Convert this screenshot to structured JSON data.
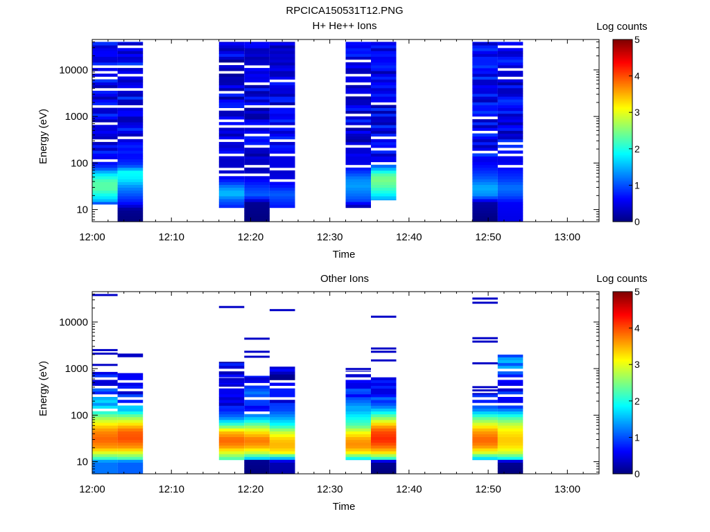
{
  "figure_title": "RPCICA150531T12.PNG",
  "colors": {
    "colormap": [
      "#00007f",
      "#0000ff",
      "#007fff",
      "#00ffff",
      "#7fff7f",
      "#ffff00",
      "#ff7f00",
      "#ff0000",
      "#7f0000"
    ]
  },
  "chart_data": [
    {
      "type": "heatmap",
      "title": "H+ He++ Ions",
      "xlabel": "Time",
      "ylabel": "Energy (eV)",
      "x_ticks": [
        "12:00",
        "12:10",
        "12:20",
        "12:30",
        "12:40",
        "12:50",
        "13:00"
      ],
      "x_tick_minutes": [
        0,
        10,
        20,
        30,
        40,
        50,
        60
      ],
      "xlim_minutes": [
        0,
        64
      ],
      "y_scale": "log",
      "ylim": [
        5.5,
        45000
      ],
      "y_ticks": [
        "10",
        "100",
        "1000",
        "10000"
      ],
      "y_tick_values": [
        10,
        100,
        1000,
        10000
      ],
      "colorbar": {
        "label": "Log counts",
        "min": 0,
        "max": 5,
        "ticks": [
          "0",
          "1",
          "2",
          "3",
          "4",
          "5"
        ]
      },
      "columns": [
        {
          "t_start": 0.0,
          "t_end": 3.2,
          "e_min": 13,
          "e_max": 40000,
          "low_profile": [
            [
              13,
              0.8
            ],
            [
              16,
              1.6
            ],
            [
              20,
              1.9
            ],
            [
              28,
              2.3
            ],
            [
              40,
              2.3
            ],
            [
              60,
              1.7
            ],
            [
              80,
              0.9
            ],
            [
              120,
              0.5
            ]
          ],
          "high_level": 0.55,
          "blank_energies": [
            110,
            290,
            700,
            1600,
            3600,
            7000,
            9400,
            12500
          ]
        },
        {
          "t_start": 3.2,
          "t_end": 6.4,
          "e_min": 5.5,
          "e_max": 40000,
          "low_profile": [
            [
              5.5,
              0.0
            ],
            [
              10,
              0.1
            ],
            [
              14,
              0.7
            ],
            [
              20,
              1.0
            ],
            [
              30,
              1.3
            ],
            [
              45,
              1.8
            ],
            [
              65,
              1.9
            ],
            [
              90,
              0.9
            ],
            [
              150,
              0.6
            ]
          ],
          "high_level": 0.6,
          "blank_energies": [
            330,
            1700,
            3800,
            7600,
            12500,
            30000
          ]
        },
        {
          "t_start": 16.0,
          "t_end": 19.2,
          "e_min": 11,
          "e_max": 40000,
          "low_profile": [
            [
              11,
              0.75
            ],
            [
              16,
              1.1
            ],
            [
              22,
              1.6
            ],
            [
              30,
              1.3
            ],
            [
              40,
              0.8
            ],
            [
              60,
              0.4
            ],
            [
              120,
              0.35
            ]
          ],
          "high_level": 0.45,
          "blank_energies": [
            60,
            75,
            160,
            300,
            580,
            780,
            1400,
            3200,
            9000,
            13500
          ]
        },
        {
          "t_start": 19.2,
          "t_end": 22.4,
          "e_min": 5.5,
          "e_max": 40000,
          "low_profile": [
            [
              5.5,
              0.0
            ],
            [
              14,
              0.1
            ],
            [
              20,
              1.1
            ],
            [
              30,
              0.9
            ],
            [
              45,
              0.6
            ],
            [
              70,
              0.3
            ],
            [
              120,
              0.35
            ]
          ],
          "high_level": 0.45,
          "blank_energies": [
            55,
            90,
            230,
            380,
            640,
            1550,
            4900,
            11500
          ]
        },
        {
          "t_start": 22.4,
          "t_end": 25.6,
          "e_min": 11,
          "e_max": 40000,
          "low_profile": [
            [
              11,
              0.7
            ],
            [
              16,
              0.9
            ],
            [
              22,
              1.1
            ],
            [
              32,
              0.7
            ],
            [
              45,
              0.5
            ],
            [
              80,
              0.35
            ]
          ],
          "high_level": 0.5,
          "blank_energies": [
            45,
            75,
            160,
            290,
            620,
            1600,
            5600
          ]
        },
        {
          "t_start": 32.0,
          "t_end": 35.2,
          "e_min": 11,
          "e_max": 40000,
          "low_profile": [
            [
              11,
              0.1
            ],
            [
              16,
              1.0
            ],
            [
              22,
              1.2
            ],
            [
              32,
              1.4
            ],
            [
              45,
              1.3
            ],
            [
              70,
              0.8
            ],
            [
              100,
              0.5
            ]
          ],
          "high_level": 0.5,
          "blank_energies": [
            85,
            230,
            640,
            1150,
            3100,
            5400,
            7800,
            16000
          ]
        },
        {
          "t_start": 35.2,
          "t_end": 38.4,
          "e_min": 16,
          "e_max": 40000,
          "low_profile": [
            [
              16,
              1.4
            ],
            [
              22,
              1.9
            ],
            [
              32,
              2.3
            ],
            [
              45,
              2.5
            ],
            [
              60,
              2.2
            ],
            [
              80,
              1.3
            ],
            [
              110,
              0.6
            ]
          ],
          "high_level": 0.55,
          "blank_energies": [
            100,
            210,
            350,
            2000
          ]
        },
        {
          "t_start": 48.0,
          "t_end": 51.2,
          "e_min": 5.5,
          "e_max": 40000,
          "low_profile": [
            [
              5.5,
              0.0
            ],
            [
              14,
              0.2
            ],
            [
              20,
              1.3
            ],
            [
              30,
              1.5
            ],
            [
              45,
              1.1
            ],
            [
              70,
              0.8
            ],
            [
              120,
              0.5
            ]
          ],
          "high_level": 0.6,
          "blank_energies": [
            180,
            440,
            1000
          ]
        },
        {
          "t_start": 51.2,
          "t_end": 54.4,
          "e_min": 5.5,
          "e_max": 40000,
          "low_profile": [
            [
              5.5,
              0.5
            ],
            [
              14,
              0.6
            ],
            [
              20,
              1.0
            ],
            [
              30,
              1.2
            ],
            [
              45,
              0.9
            ],
            [
              70,
              0.7
            ],
            [
              120,
              0.5
            ]
          ],
          "high_level": 0.55,
          "blank_energies": [
            85,
            150,
            210,
            270,
            6700,
            10500,
            30000
          ]
        }
      ]
    },
    {
      "type": "heatmap",
      "title": "Other Ions",
      "xlabel": "Time",
      "ylabel": "Energy (eV)",
      "x_ticks": [
        "12:00",
        "12:10",
        "12:20",
        "12:30",
        "12:40",
        "12:50",
        "13:00"
      ],
      "x_tick_minutes": [
        0,
        10,
        20,
        30,
        40,
        50,
        60
      ],
      "xlim_minutes": [
        0,
        64
      ],
      "y_scale": "log",
      "ylim": [
        5.5,
        45000
      ],
      "y_ticks": [
        "10",
        "100",
        "1000",
        "10000"
      ],
      "y_tick_values": [
        10,
        100,
        1000,
        10000
      ],
      "colorbar": {
        "label": "Log counts",
        "min": 0,
        "max": 5,
        "ticks": [
          "0",
          "1",
          "2",
          "3",
          "4",
          "5"
        ]
      },
      "columns": [
        {
          "t_start": 0.0,
          "t_end": 3.2,
          "e_min": 5.5,
          "e_max": 850,
          "low_profile": [
            [
              5.5,
              1.2
            ],
            [
              10,
              1.2
            ],
            [
              12,
              2.2
            ],
            [
              16,
              3.0
            ],
            [
              20,
              3.6
            ],
            [
              30,
              3.9
            ],
            [
              45,
              3.7
            ],
            [
              60,
              3.3
            ],
            [
              90,
              2.6
            ],
            [
              130,
              1.8
            ],
            [
              200,
              1.5
            ],
            [
              300,
              1.1
            ],
            [
              500,
              0.7
            ],
            [
              850,
              0.6
            ]
          ],
          "high_level": 0.4,
          "blank_energies": [
            140,
            260,
            420,
            620
          ],
          "lines": [
            2100,
            2500,
            1200,
            38000
          ]
        },
        {
          "t_start": 3.2,
          "t_end": 6.4,
          "e_min": 5.5,
          "e_max": 800,
          "low_profile": [
            [
              5.5,
              1.1
            ],
            [
              10,
              1.1
            ],
            [
              12,
              2.3
            ],
            [
              16,
              3.0
            ],
            [
              20,
              3.6
            ],
            [
              30,
              4.0
            ],
            [
              45,
              3.9
            ],
            [
              60,
              3.4
            ],
            [
              90,
              2.6
            ],
            [
              130,
              1.6
            ],
            [
              200,
              1.0
            ],
            [
              300,
              0.6
            ],
            [
              800,
              0.4
            ]
          ],
          "high_level": 0.4,
          "blank_energies": [
            170,
            230,
            350,
            520
          ],
          "lines": [
            1850,
            2000
          ]
        },
        {
          "t_start": 16.0,
          "t_end": 19.2,
          "e_min": 11,
          "e_max": 1400,
          "low_profile": [
            [
              11,
              2.1
            ],
            [
              16,
              3.0
            ],
            [
              22,
              3.7
            ],
            [
              30,
              3.9
            ],
            [
              45,
              3.4
            ],
            [
              60,
              2.3
            ],
            [
              90,
              1.2
            ],
            [
              150,
              0.6
            ],
            [
              400,
              0.5
            ],
            [
              1400,
              0.5
            ]
          ],
          "high_level": 0.4,
          "blank_energies": [
            420,
            650,
            1000
          ],
          "lines": [
            21000,
            430,
            600
          ]
        },
        {
          "t_start": 19.2,
          "t_end": 22.4,
          "e_min": 5.5,
          "e_max": 700,
          "low_profile": [
            [
              5.5,
              0.0
            ],
            [
              11,
              0.1
            ],
            [
              12,
              1.8
            ],
            [
              16,
              2.9
            ],
            [
              22,
              3.6
            ],
            [
              30,
              3.8
            ],
            [
              45,
              3.2
            ],
            [
              60,
              2.5
            ],
            [
              90,
              1.5
            ],
            [
              130,
              0.7
            ],
            [
              300,
              0.9
            ],
            [
              700,
              0.5
            ]
          ],
          "high_level": 0.4,
          "blank_energies": [
            110,
            230,
            480
          ],
          "lines": [
            4400,
            1800,
            2300
          ]
        },
        {
          "t_start": 22.4,
          "t_end": 25.6,
          "e_min": 5.5,
          "e_max": 1100,
          "low_profile": [
            [
              5.5,
              0.2
            ],
            [
              10,
              0.25
            ],
            [
              12,
              1.6
            ],
            [
              16,
              3.2
            ],
            [
              22,
              3.5
            ],
            [
              30,
              3.4
            ],
            [
              45,
              2.8
            ],
            [
              60,
              2.0
            ],
            [
              90,
              1.4
            ],
            [
              150,
              0.8
            ],
            [
              400,
              0.4
            ],
            [
              1100,
              0.4
            ]
          ],
          "high_level": 0.4,
          "blank_energies": [
            230,
            380,
            550
          ],
          "lines": [
            18000
          ]
        },
        {
          "t_start": 32.0,
          "t_end": 35.2,
          "e_min": 11,
          "e_max": 900,
          "low_profile": [
            [
              11,
              1.6
            ],
            [
              16,
              3.2
            ],
            [
              22,
              3.7
            ],
            [
              30,
              3.6
            ],
            [
              45,
              3.0
            ],
            [
              60,
              2.3
            ],
            [
              90,
              1.9
            ],
            [
              150,
              1.3
            ],
            [
              300,
              0.8
            ],
            [
              500,
              0.5
            ],
            [
              900,
              0.45
            ]
          ],
          "high_level": 0.4,
          "blank_energies": [
            600,
            850
          ],
          "lines": [
            980
          ]
        },
        {
          "t_start": 35.2,
          "t_end": 38.4,
          "e_min": 5.5,
          "e_max": 650,
          "low_profile": [
            [
              5.5,
              0.0
            ],
            [
              10,
              0.1
            ],
            [
              12,
              2.2
            ],
            [
              16,
              3.3
            ],
            [
              22,
              3.9
            ],
            [
              30,
              4.2
            ],
            [
              45,
              4.0
            ],
            [
              60,
              3.5
            ],
            [
              90,
              2.5
            ],
            [
              130,
              1.6
            ],
            [
              200,
              1.1
            ],
            [
              300,
              0.7
            ],
            [
              650,
              0.6
            ]
          ],
          "high_level": 0.4,
          "blank_energies": [],
          "lines": [
            13000,
            2700,
            2300,
            1500
          ]
        },
        {
          "t_start": 48.0,
          "t_end": 51.2,
          "e_min": 11,
          "e_max": 300,
          "low_profile": [
            [
              11,
              1.4
            ],
            [
              16,
              3.0
            ],
            [
              22,
              3.7
            ],
            [
              30,
              3.9
            ],
            [
              45,
              3.6
            ],
            [
              60,
              3.1
            ],
            [
              90,
              2.3
            ],
            [
              130,
              1.3
            ],
            [
              300,
              0.6
            ]
          ],
          "high_level": 0.4,
          "blank_energies": [
            170,
            230
          ],
          "lines": [
            32000,
            26000,
            4500,
            3800,
            1300,
            400,
            340
          ]
        },
        {
          "t_start": 51.2,
          "t_end": 54.4,
          "e_min": 5.5,
          "e_max": 2000,
          "low_profile": [
            [
              5.5,
              0.0
            ],
            [
              10,
              0.1
            ],
            [
              12,
              2.0
            ],
            [
              16,
              2.9
            ],
            [
              22,
              3.3
            ],
            [
              30,
              3.4
            ],
            [
              45,
              3.2
            ],
            [
              60,
              2.9
            ],
            [
              90,
              2.2
            ],
            [
              150,
              0.9
            ],
            [
              400,
              0.5
            ],
            [
              1000,
              1.3
            ],
            [
              2000,
              1.2
            ]
          ],
          "high_level": 0.4,
          "blank_energies": [
            170,
            280,
            420,
            600,
            900
          ],
          "lines": []
        }
      ]
    }
  ]
}
